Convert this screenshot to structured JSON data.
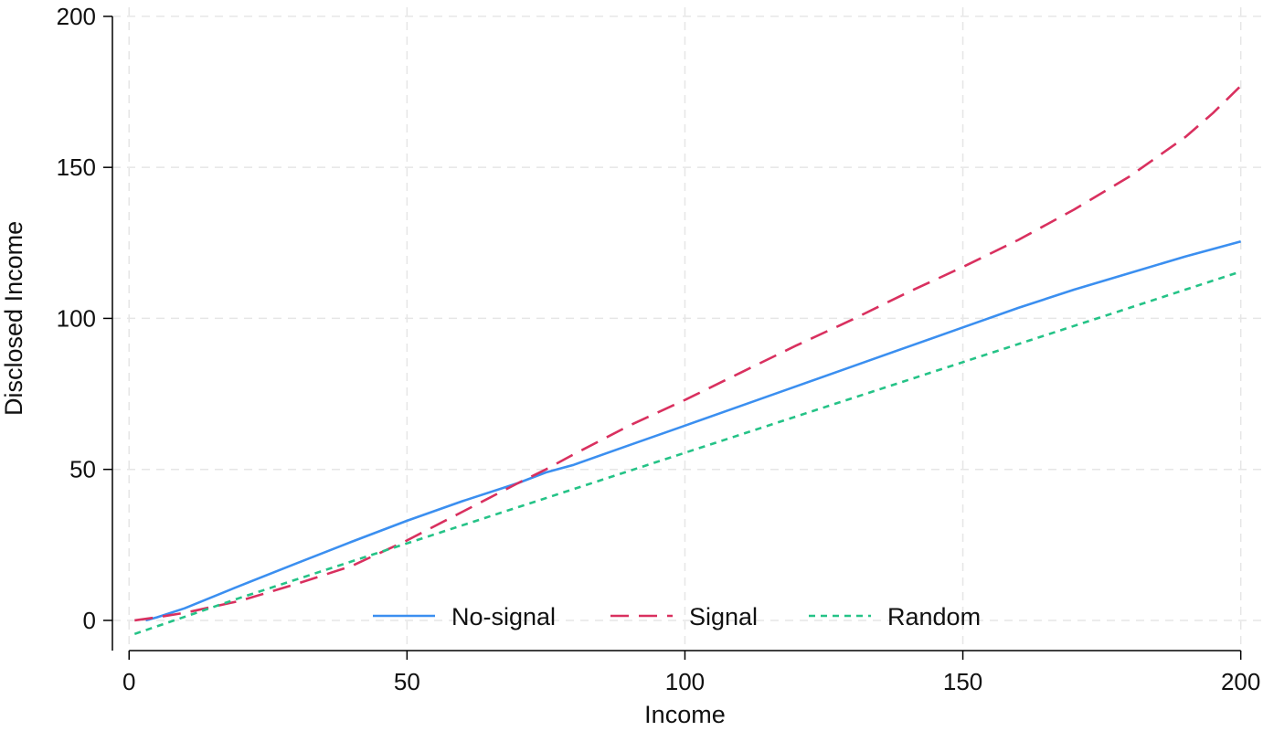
{
  "chart_data": {
    "type": "line",
    "title": "",
    "xlabel": "Income",
    "ylabel": "Disclosed Income",
    "xlim": [
      -3,
      204
    ],
    "ylim": [
      -10,
      203
    ],
    "x_ticks": [
      0,
      50,
      100,
      150,
      200
    ],
    "y_ticks": [
      0,
      50,
      100,
      150,
      200
    ],
    "grid": true,
    "legend_position": "bottom-center inside",
    "series": [
      {
        "name": "No-signal",
        "color": "#3b8ff0",
        "style": "solid",
        "x": [
          3,
          5,
          10,
          20,
          30,
          40,
          50,
          60,
          70,
          75,
          80,
          90,
          100,
          110,
          120,
          130,
          140,
          150,
          160,
          170,
          180,
          190,
          200
        ],
        "y": [
          0,
          1,
          4,
          11.5,
          18.8,
          26,
          33,
          39.5,
          45.5,
          49,
          51.5,
          58,
          64.5,
          71,
          77.5,
          84,
          90.5,
          97,
          103.5,
          109.5,
          115,
          120.5,
          125.5
        ]
      },
      {
        "name": "Signal",
        "color": "#d9305f",
        "style": "dashed",
        "x": [
          1,
          5,
          10,
          20,
          30,
          40,
          50,
          60,
          70,
          75,
          80,
          90,
          100,
          110,
          120,
          130,
          140,
          150,
          160,
          170,
          180,
          190,
          195,
          200
        ],
        "y": [
          0,
          1,
          2.5,
          6.5,
          12,
          18,
          26.5,
          36,
          45.5,
          50,
          55,
          64.5,
          73,
          82,
          91,
          99.5,
          108.5,
          117,
          126,
          136,
          147,
          160,
          168,
          177
        ]
      },
      {
        "name": "Random",
        "color": "#25c387",
        "style": "dotted",
        "x": [
          1,
          20,
          40,
          60,
          80,
          100,
          120,
          140,
          160,
          180,
          200
        ],
        "y": [
          -4.5,
          7.5,
          19.5,
          31.5,
          43.5,
          55.5,
          67.5,
          79.5,
          91.5,
          103.5,
          115.5
        ]
      }
    ]
  }
}
